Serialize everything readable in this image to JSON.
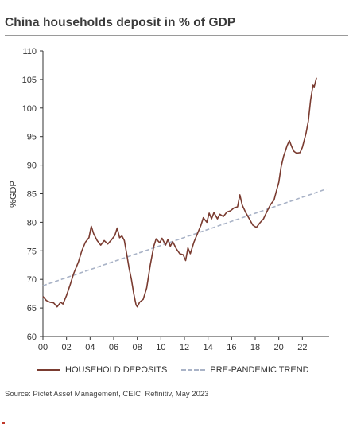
{
  "title": "China households deposit in % of GDP",
  "source": "Source: Pictet Asset Management, CEIC, Refinitiv, May 2023",
  "colors": {
    "household": "#7a3b30",
    "trend": "#a9b3c7",
    "axis": "#333333"
  },
  "chart_data": {
    "type": "line",
    "title": "China households deposit in % of GDP",
    "ylabel": "%GDP",
    "xlabel": "",
    "ylim": [
      60,
      110
    ],
    "xlim": [
      2000,
      2024
    ],
    "yticks": [
      60,
      65,
      70,
      75,
      80,
      85,
      90,
      95,
      100,
      105,
      110
    ],
    "xticks": [
      {
        "value": 2000,
        "label": "00"
      },
      {
        "value": 2002,
        "label": "02"
      },
      {
        "value": 2004,
        "label": "04"
      },
      {
        "value": 2006,
        "label": "06"
      },
      {
        "value": 2008,
        "label": "08"
      },
      {
        "value": 2010,
        "label": "10"
      },
      {
        "value": 2012,
        "label": "12"
      },
      {
        "value": 2014,
        "label": "14"
      },
      {
        "value": 2016,
        "label": "16"
      },
      {
        "value": 2018,
        "label": "18"
      },
      {
        "value": 2020,
        "label": "20"
      },
      {
        "value": 2022,
        "label": "22"
      }
    ],
    "legend": "bottom",
    "series": [
      {
        "name": "HOUSEHOLD DEPOSITS",
        "style": "solid",
        "points": [
          [
            2000.0,
            67.0
          ],
          [
            2000.3,
            66.3
          ],
          [
            2000.6,
            66.0
          ],
          [
            2000.9,
            65.9
          ],
          [
            2001.2,
            65.2
          ],
          [
            2001.5,
            66.0
          ],
          [
            2001.7,
            65.7
          ],
          [
            2002.0,
            67.2
          ],
          [
            2002.3,
            69.0
          ],
          [
            2002.6,
            71.0
          ],
          [
            2003.0,
            73.0
          ],
          [
            2003.3,
            75.0
          ],
          [
            2003.6,
            76.5
          ],
          [
            2003.9,
            77.3
          ],
          [
            2004.1,
            79.3
          ],
          [
            2004.3,
            78.0
          ],
          [
            2004.6,
            76.8
          ],
          [
            2004.9,
            76.0
          ],
          [
            2005.2,
            76.8
          ],
          [
            2005.5,
            76.2
          ],
          [
            2005.8,
            76.9
          ],
          [
            2006.1,
            77.7
          ],
          [
            2006.3,
            79.0
          ],
          [
            2006.5,
            77.3
          ],
          [
            2006.7,
            77.6
          ],
          [
            2006.9,
            76.8
          ],
          [
            2007.1,
            74.5
          ],
          [
            2007.3,
            72.0
          ],
          [
            2007.5,
            70.0
          ],
          [
            2007.7,
            67.5
          ],
          [
            2007.9,
            65.5
          ],
          [
            2008.0,
            65.2
          ],
          [
            2008.2,
            66.0
          ],
          [
            2008.5,
            66.5
          ],
          [
            2008.8,
            68.5
          ],
          [
            2009.1,
            72.5
          ],
          [
            2009.4,
            75.8
          ],
          [
            2009.6,
            77.1
          ],
          [
            2009.9,
            76.4
          ],
          [
            2010.1,
            77.2
          ],
          [
            2010.4,
            76.0
          ],
          [
            2010.6,
            77.0
          ],
          [
            2010.8,
            75.8
          ],
          [
            2011.0,
            76.6
          ],
          [
            2011.3,
            75.4
          ],
          [
            2011.6,
            74.5
          ],
          [
            2011.9,
            74.3
          ],
          [
            2012.1,
            73.3
          ],
          [
            2012.3,
            75.5
          ],
          [
            2012.5,
            74.5
          ],
          [
            2012.8,
            76.5
          ],
          [
            2013.1,
            78.0
          ],
          [
            2013.4,
            79.5
          ],
          [
            2013.6,
            80.8
          ],
          [
            2013.9,
            80.0
          ],
          [
            2014.1,
            81.6
          ],
          [
            2014.3,
            80.6
          ],
          [
            2014.5,
            81.7
          ],
          [
            2014.8,
            80.6
          ],
          [
            2015.0,
            81.4
          ],
          [
            2015.3,
            81.0
          ],
          [
            2015.6,
            81.8
          ],
          [
            2015.9,
            82.0
          ],
          [
            2016.2,
            82.5
          ],
          [
            2016.5,
            82.7
          ],
          [
            2016.7,
            84.8
          ],
          [
            2016.9,
            83.0
          ],
          [
            2017.2,
            81.7
          ],
          [
            2017.5,
            80.6
          ],
          [
            2017.8,
            79.5
          ],
          [
            2018.1,
            79.1
          ],
          [
            2018.4,
            79.9
          ],
          [
            2018.7,
            80.6
          ],
          [
            2019.0,
            81.9
          ],
          [
            2019.3,
            83.1
          ],
          [
            2019.6,
            83.9
          ],
          [
            2019.8,
            85.5
          ],
          [
            2020.0,
            87.0
          ],
          [
            2020.2,
            89.7
          ],
          [
            2020.4,
            91.5
          ],
          [
            2020.7,
            93.4
          ],
          [
            2020.9,
            94.3
          ],
          [
            2021.1,
            93.2
          ],
          [
            2021.3,
            92.4
          ],
          [
            2021.5,
            92.1
          ],
          [
            2021.8,
            92.2
          ],
          [
            2022.0,
            93.1
          ],
          [
            2022.3,
            95.5
          ],
          [
            2022.5,
            97.7
          ],
          [
            2022.7,
            101.4
          ],
          [
            2022.9,
            104.0
          ],
          [
            2023.0,
            103.7
          ],
          [
            2023.2,
            105.3
          ]
        ]
      },
      {
        "name": "PRE-PANDEMIC TREND",
        "style": "dashed",
        "points": [
          [
            2000.0,
            68.9
          ],
          [
            2024.0,
            85.8
          ]
        ]
      }
    ]
  }
}
